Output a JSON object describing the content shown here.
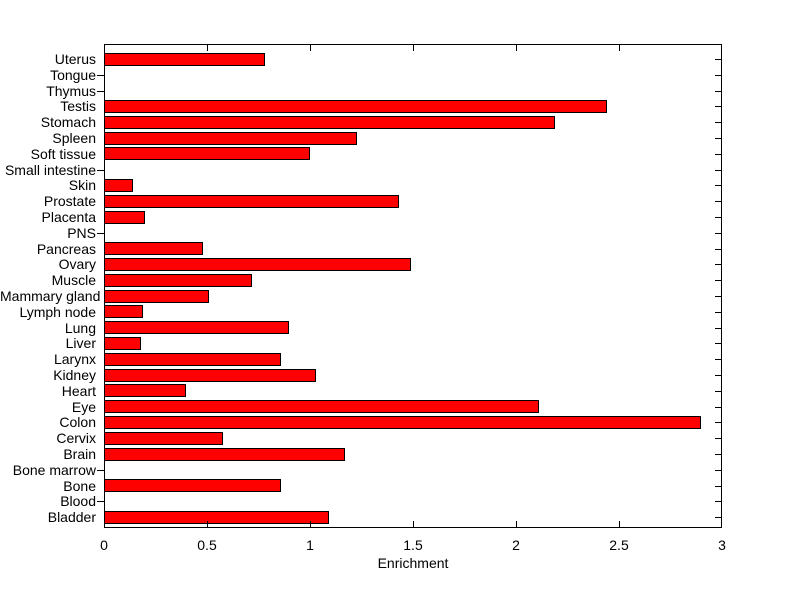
{
  "chart_data": {
    "type": "bar",
    "orientation": "horizontal",
    "title": "",
    "xlabel": "Enrichment",
    "ylabel": "",
    "xlim": [
      0,
      3
    ],
    "xticks": [
      0,
      0.5,
      1,
      1.5,
      2,
      2.5,
      3
    ],
    "xtick_labels": [
      "0",
      "0.5",
      "1",
      "1.5",
      "2",
      "2.5",
      "3"
    ],
    "grid": false,
    "legend": null,
    "bar_color": "#ff0000",
    "bar_edge_color": "#000000",
    "axis_color": "#000000",
    "background_color": "#ffffff",
    "categories": [
      "Uterus",
      "Tongue",
      "Thymus",
      "Testis",
      "Stomach",
      "Spleen",
      "Soft tissue",
      "Small intestine",
      "Skin",
      "Prostate",
      "Placenta",
      "PNS",
      "Pancreas",
      "Ovary",
      "Muscle",
      "Mammary gland",
      "Lymph node",
      "Lung",
      "Liver",
      "Larynx",
      "Kidney",
      "Heart",
      "Eye",
      "Colon",
      "Cervix",
      "Brain",
      "Bone marrow",
      "Bone",
      "Blood",
      "Bladder"
    ],
    "values": [
      0.78,
      0,
      0,
      2.44,
      2.19,
      1.23,
      1.0,
      0,
      0.14,
      1.43,
      0.2,
      0,
      0.48,
      1.49,
      0.72,
      0.51,
      0.19,
      0.9,
      0.18,
      0.86,
      1.03,
      0.4,
      2.11,
      2.9,
      0.58,
      1.17,
      0,
      0.86,
      0,
      1.09
    ]
  }
}
